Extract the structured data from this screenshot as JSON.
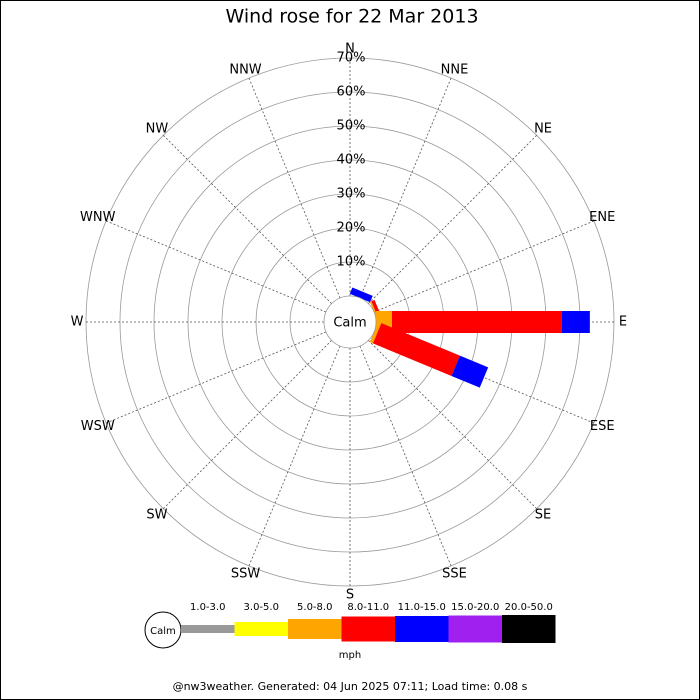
{
  "chart_data": {
    "type": "windrose",
    "title": "Wind rose for 22 Mar 2013",
    "categories": [
      "N",
      "NNE",
      "NE",
      "ENE",
      "E",
      "ESE",
      "SE",
      "SSE",
      "S",
      "SSW",
      "SW",
      "WSW",
      "W",
      "WNW",
      "NW",
      "NNW"
    ],
    "calm_label": "Calm",
    "rlim": [
      0,
      70
    ],
    "rticks": [
      {
        "value": 10,
        "label": "10%"
      },
      {
        "value": 20,
        "label": "20%"
      },
      {
        "value": 30,
        "label": "30%"
      },
      {
        "value": 40,
        "label": "40%"
      },
      {
        "value": 50,
        "label": "50%"
      },
      {
        "value": 60,
        "label": "60%"
      },
      {
        "value": 70,
        "label": "70%"
      }
    ],
    "series": [
      {
        "name": "1.0-3.0",
        "color": "#999999",
        "values": [
          0,
          0,
          0,
          0,
          0,
          0,
          0,
          0,
          0,
          0,
          0,
          0,
          0,
          0,
          0,
          0
        ]
      },
      {
        "name": "3.0-5.0",
        "color": "#ffff00",
        "values": [
          0,
          0,
          0,
          0,
          0,
          0,
          0,
          0,
          0,
          0,
          0,
          0,
          0,
          0,
          0,
          0
        ]
      },
      {
        "name": "5.0-8.0",
        "color": "#ffa500",
        "values": [
          0,
          0,
          0,
          0.5,
          4.7,
          1,
          0,
          0,
          0,
          0,
          0,
          0,
          0,
          0,
          0,
          0
        ]
      },
      {
        "name": "8.0-11.0",
        "color": "#ff0000",
        "values": [
          0,
          0,
          0,
          1,
          50,
          25,
          0,
          0,
          0,
          0,
          0,
          0,
          0,
          0,
          0,
          0
        ]
      },
      {
        "name": "11.0-15.0",
        "color": "#0000ff",
        "values": [
          0,
          2,
          0,
          0,
          8.2,
          9,
          0,
          0,
          0,
          0,
          0,
          0,
          0,
          0,
          0,
          0
        ]
      },
      {
        "name": "15.0-20.0",
        "color": "#a020f0",
        "values": [
          0,
          0,
          0,
          0,
          0,
          0,
          0,
          0,
          0,
          0,
          0,
          0,
          0,
          0,
          0,
          0
        ]
      },
      {
        "name": "20.0-50.0",
        "color": "#000000",
        "values": [
          0,
          0,
          0,
          0,
          0,
          0,
          0,
          0,
          0,
          0,
          0,
          0,
          0,
          0,
          0,
          0
        ]
      }
    ],
    "unit": "mph",
    "footer": "@nw3weather. Generated: 04 Jun 2025 07:11; Load time: 0.08 s"
  }
}
